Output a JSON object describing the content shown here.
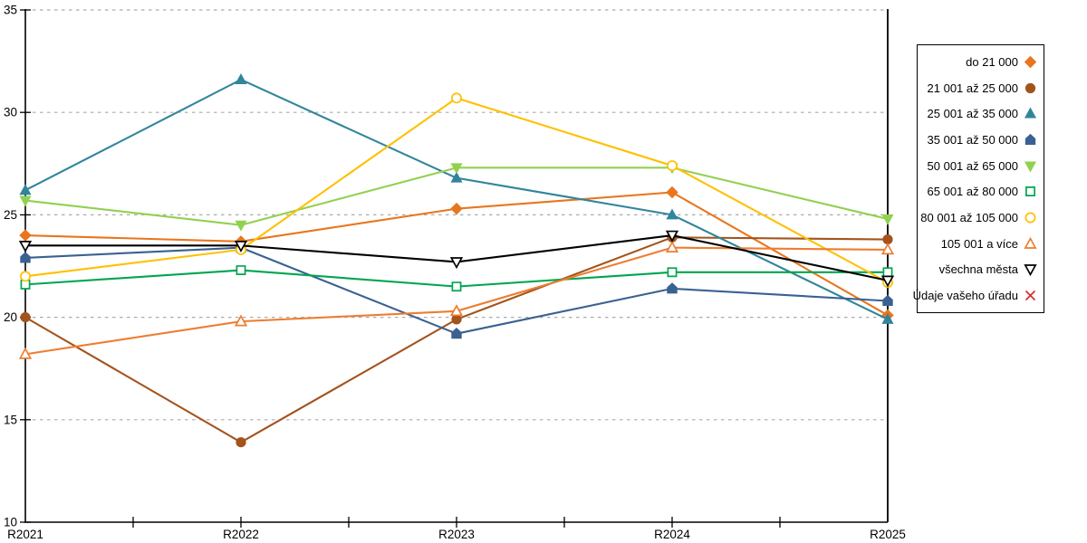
{
  "chart_data": {
    "type": "line",
    "title": "",
    "xlabel": "",
    "ylabel": "",
    "x_categories": [
      "R2021",
      "R2022",
      "R2023",
      "R2024",
      "R2025"
    ],
    "ylim": [
      10,
      35
    ],
    "yticks": [
      10,
      15,
      20,
      25,
      30,
      35
    ],
    "grid": "horizontal-dashed",
    "legend_position": "right",
    "series": [
      {
        "name": "do 21 000",
        "color": "#E8761E",
        "marker": "diamond",
        "filled": true,
        "values": [
          24.0,
          23.7,
          25.3,
          26.1,
          20.1
        ]
      },
      {
        "name": "21 001 až 25 000",
        "color": "#A3541C",
        "marker": "circle",
        "filled": true,
        "values": [
          20.0,
          13.9,
          19.9,
          23.9,
          23.8
        ]
      },
      {
        "name": "25 001 až 35 000",
        "color": "#31859C",
        "marker": "triangle-up",
        "filled": true,
        "values": [
          26.2,
          31.6,
          26.8,
          25.0,
          19.9
        ]
      },
      {
        "name": "35 001 až 50 000",
        "color": "#3A6191",
        "marker": "pentagon",
        "filled": true,
        "values": [
          22.9,
          23.4,
          19.2,
          21.4,
          20.8
        ]
      },
      {
        "name": "50 001 až 65 000",
        "color": "#92D050",
        "marker": "triangle-down",
        "filled": true,
        "values": [
          25.7,
          24.5,
          27.3,
          27.3,
          24.8
        ]
      },
      {
        "name": "65 001 až 80 000",
        "color": "#00A551",
        "marker": "square",
        "filled": false,
        "values": [
          21.6,
          22.3,
          21.5,
          22.2,
          22.2
        ]
      },
      {
        "name": "80 001 až 105 000",
        "color": "#FFC000",
        "marker": "circle",
        "filled": false,
        "values": [
          22.0,
          23.3,
          30.7,
          27.4,
          21.7
        ]
      },
      {
        "name": "105 001 a více",
        "color": "#ED7D31",
        "marker": "triangle-up",
        "filled": false,
        "values": [
          18.2,
          19.8,
          20.3,
          23.4,
          23.3
        ]
      },
      {
        "name": "všechna města",
        "color": "#000000",
        "marker": "triangle-down",
        "filled": false,
        "values": [
          23.5,
          23.5,
          22.7,
          24.0,
          21.8
        ]
      },
      {
        "name": "Údaje vašeho úřadu",
        "color": "#D92B2B",
        "marker": "x",
        "filled": false,
        "values": [
          null,
          null,
          null,
          null,
          null
        ]
      }
    ]
  },
  "style": {
    "background": "#FFFFFF",
    "axis_color": "#000000",
    "grid_color": "#ABABAB",
    "tick_label_color": "#000000",
    "legend_border_color": "#000000"
  }
}
